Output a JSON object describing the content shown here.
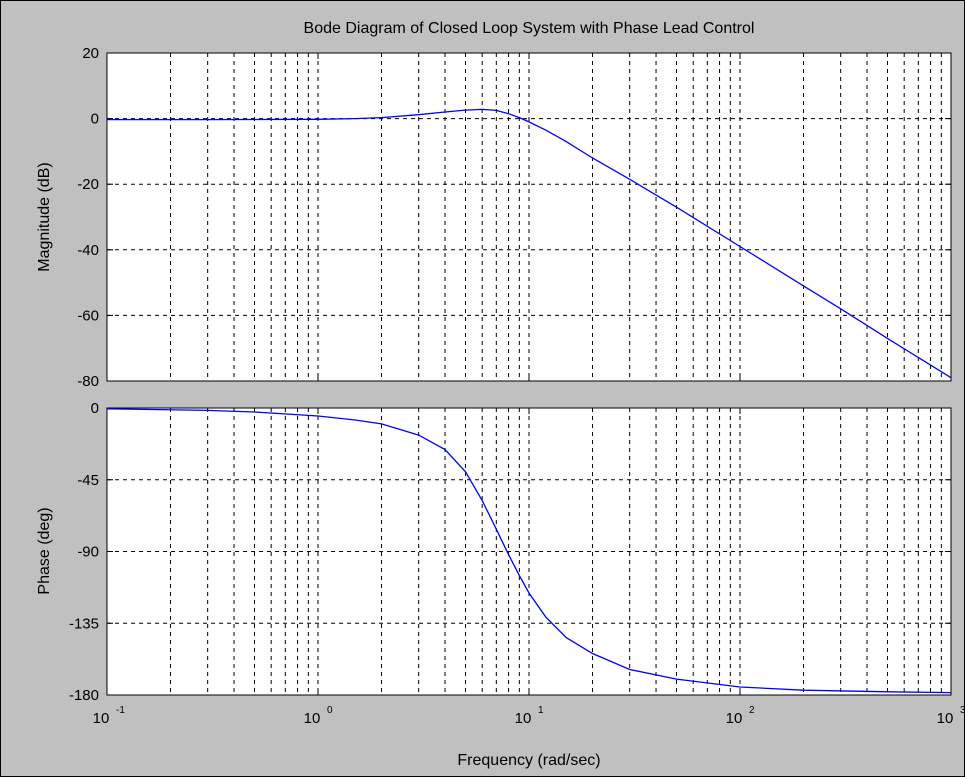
{
  "chart_data": {
    "type": "line",
    "title": "Bode Diagram of Closed Loop System with Phase Lead Control",
    "xlabel": "Frequency  (rad/sec)",
    "x_scale": "log",
    "xlim": [
      0.1,
      1000
    ],
    "x_ticks": [
      {
        "value": 0.1,
        "base": "10",
        "exp": "-1"
      },
      {
        "value": 1,
        "base": "10",
        "exp": "0"
      },
      {
        "value": 10,
        "base": "10",
        "exp": "1"
      },
      {
        "value": 100,
        "base": "10",
        "exp": "2"
      },
      {
        "value": 1000,
        "base": "10",
        "exp": "3"
      }
    ],
    "grid": true,
    "line_color": "#0000ff",
    "magnitude": {
      "ylabel": "Magnitude (dB)",
      "ylim": [
        -80,
        20
      ],
      "y_ticks": [
        "20",
        "0",
        "-20",
        "-40",
        "-60",
        "-80"
      ],
      "x": [
        0.1,
        0.3,
        1,
        1.5,
        2,
        3,
        4,
        5,
        6,
        7,
        8,
        9,
        10,
        12,
        15,
        20,
        30,
        50,
        100,
        200,
        300,
        500,
        1000
      ],
      "values": [
        -0.3,
        -0.3,
        -0.2,
        0.0,
        0.3,
        1.2,
        2.0,
        2.6,
        2.8,
        2.5,
        1.5,
        0.3,
        -1.0,
        -3.5,
        -7.0,
        -12.0,
        -18.5,
        -27.0,
        -39.0,
        -51.0,
        -58.0,
        -67.0,
        -79.0
      ]
    },
    "phase": {
      "ylabel": "Phase (deg)",
      "ylim": [
        -180,
        0
      ],
      "y_ticks": [
        "0",
        "-45",
        "-90",
        "-135",
        "-180"
      ],
      "x": [
        0.1,
        0.3,
        0.5,
        1,
        1.5,
        2,
        3,
        4,
        5,
        6,
        7,
        8,
        9,
        10,
        12,
        15,
        20,
        30,
        50,
        100,
        200,
        500,
        1000
      ],
      "values": [
        -0.5,
        -1.5,
        -2.5,
        -5.0,
        -7.5,
        -10.0,
        -17.0,
        -26.0,
        -40.0,
        -58.0,
        -76.0,
        -92.0,
        -105.0,
        -116.0,
        -131.0,
        -144.0,
        -154.0,
        -164.0,
        -170.0,
        -175.0,
        -177.0,
        -178.0,
        -178.5
      ]
    }
  }
}
